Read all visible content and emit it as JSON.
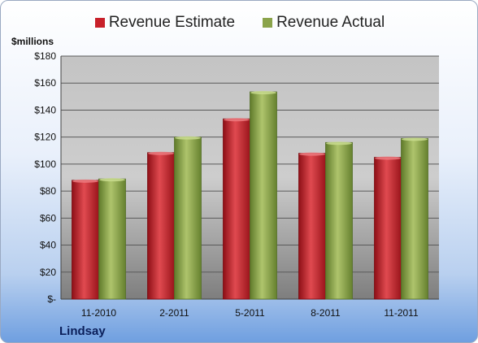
{
  "chart_data": {
    "type": "bar",
    "unit_label": "$millions",
    "categories": [
      "11-2010",
      "2-2011",
      "5-2011",
      "8-2011",
      "11-2011"
    ],
    "series": [
      {
        "name": "Revenue Estimate",
        "color": "#c8202a",
        "values": [
          88,
          108.5,
          133.5,
          108,
          105
        ]
      },
      {
        "name": "Revenue Actual",
        "color": "#8aa34a",
        "values": [
          89,
          120,
          153.5,
          116,
          119
        ]
      }
    ],
    "y_ticks": [
      "$-",
      "$20",
      "$40",
      "$60",
      "$80",
      "$100",
      "$120",
      "$140",
      "$160",
      "$180"
    ],
    "ylim": [
      0,
      180
    ],
    "grid": true,
    "legend_position": "top"
  },
  "footer": {
    "brand": "Lindsay"
  }
}
